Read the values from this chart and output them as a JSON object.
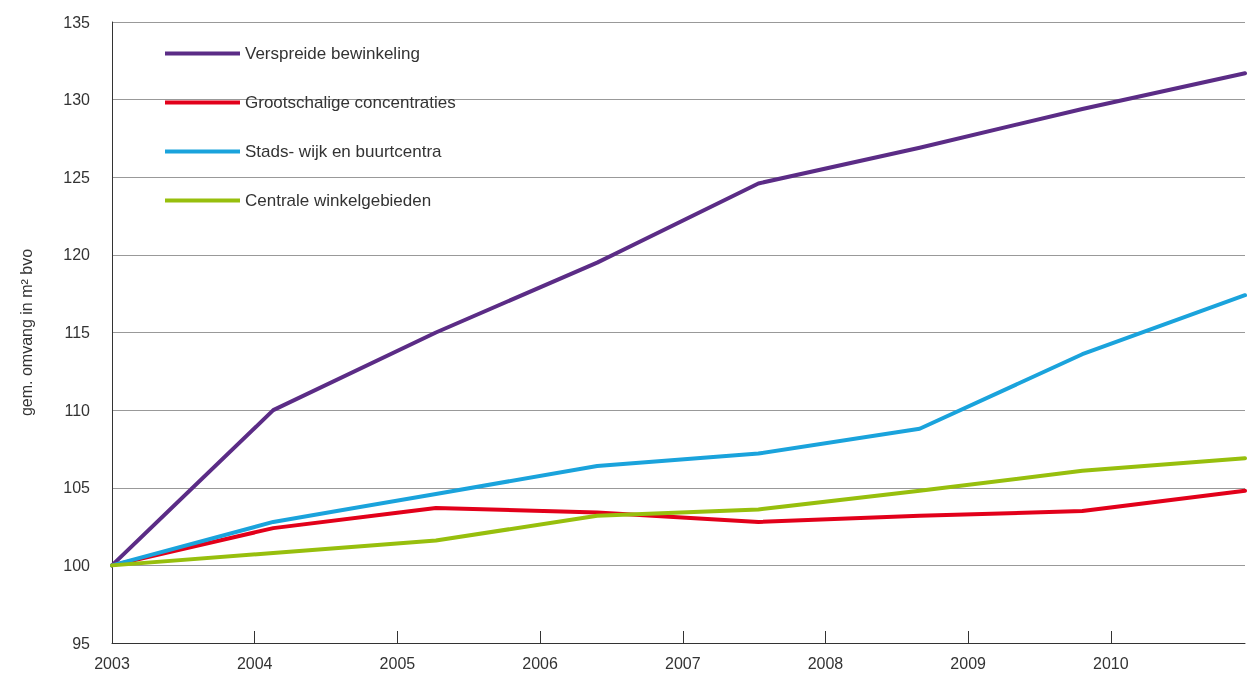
{
  "chart_data": {
    "type": "line",
    "ylabel": "gem. omvang in m² bvo",
    "x": [
      2003,
      2004.13,
      2005.27,
      2006.4,
      2007.53,
      2008.66,
      2009.8,
      2010.94
    ],
    "xlim": [
      2003,
      2010.94
    ],
    "xticks": [
      2003,
      2004,
      2005,
      2006,
      2007,
      2008,
      2009,
      2010
    ],
    "ylim": [
      95,
      135
    ],
    "yticks": [
      95,
      100,
      105,
      110,
      115,
      120,
      125,
      130,
      135
    ],
    "grid": "y",
    "legend": "top left",
    "marker": "none",
    "line_style": "solid",
    "series": [
      {
        "name": "Verspreide bewinkeling",
        "color": "#5b2c86",
        "values": [
          100,
          110,
          115,
          119.5,
          124.6,
          126.9,
          129.4,
          131.7
        ]
      },
      {
        "name": "Grootschalige concentraties",
        "color": "#e2001a",
        "values": [
          100,
          102.4,
          103.7,
          103.4,
          102.8,
          103.2,
          103.5,
          104.8
        ]
      },
      {
        "name": "Stads- wijk en buurtcentra",
        "color": "#1aa3dc",
        "values": [
          100,
          102.8,
          104.6,
          106.4,
          107.2,
          108.8,
          113.6,
          117.4
        ]
      },
      {
        "name": "Centrale winkelgebieden",
        "color": "#97bf0d",
        "values": [
          100,
          100.8,
          101.6,
          103.2,
          103.6,
          104.8,
          106.1,
          106.9
        ]
      }
    ]
  }
}
